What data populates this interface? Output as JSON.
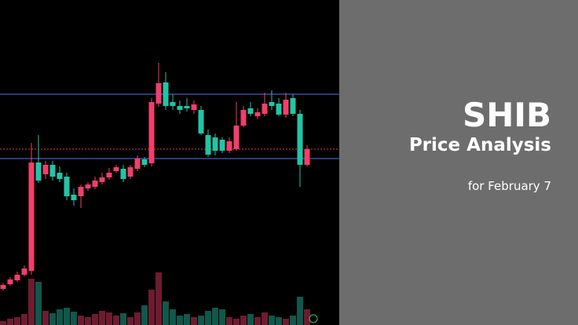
{
  "header": {
    "title": "SHIB",
    "subtitle": "Price Analysis",
    "date": "for February 7"
  },
  "chart_data": {
    "type": "candlestick",
    "open": [
      46,
      52,
      57,
      64,
      69,
      207,
      192,
      204,
      194,
      189,
      166,
      164,
      174,
      176,
      182,
      188,
      196,
      199,
      189,
      199,
      211,
      206,
      282,
      309,
      284,
      279,
      279,
      274,
      274,
      242,
      239,
      236,
      222,
      224,
      254,
      276,
      266,
      269,
      284,
      282,
      268,
      289,
      269,
      204
    ],
    "high": [
      54,
      61,
      68,
      76,
      232,
      242,
      209,
      209,
      202,
      194,
      174,
      179,
      182,
      189,
      194,
      200,
      204,
      204,
      204,
      216,
      214,
      289,
      334,
      322,
      294,
      286,
      289,
      286,
      279,
      249,
      244,
      239,
      239,
      284,
      279,
      284,
      276,
      296,
      299,
      289,
      296,
      294,
      274,
      229
    ],
    "low": [
      44,
      50,
      55,
      62,
      64,
      181,
      186,
      184,
      182,
      159,
      152,
      149,
      171,
      173,
      179,
      185,
      194,
      182,
      186,
      196,
      201,
      202,
      278,
      274,
      274,
      269,
      272,
      269,
      242,
      214,
      216,
      219,
      219,
      222,
      252,
      266,
      262,
      266,
      274,
      266,
      264,
      266,
      176,
      202
    ],
    "close": [
      51,
      58,
      64,
      72,
      207,
      184,
      204,
      189,
      186,
      164,
      159,
      176,
      179,
      184,
      188,
      194,
      201,
      186,
      201,
      212,
      204,
      284,
      308,
      279,
      279,
      274,
      276,
      281,
      244,
      217,
      222,
      222,
      234,
      254,
      274,
      269,
      271,
      282,
      279,
      268,
      287,
      269,
      204,
      224
    ],
    "volume": [
      5,
      8,
      10,
      14,
      59,
      55,
      18,
      15,
      20,
      22,
      17,
      12,
      10,
      14,
      18,
      16,
      12,
      15,
      10,
      16,
      25,
      45,
      67,
      30,
      20,
      12,
      14,
      10,
      12,
      18,
      22,
      20,
      10,
      8,
      12,
      14,
      10,
      16,
      12,
      10,
      8,
      12,
      36,
      20
    ],
    "ylim": [
      0,
      414
    ],
    "up_color": "#f23f6a",
    "down_color": "#22c4a6",
    "levels": [
      {
        "value": 294,
        "color": "#3f5bd6"
      },
      {
        "value": 212,
        "color": "#3f5bd6"
      },
      {
        "value": 224,
        "color": "#b23040"
      }
    ]
  }
}
